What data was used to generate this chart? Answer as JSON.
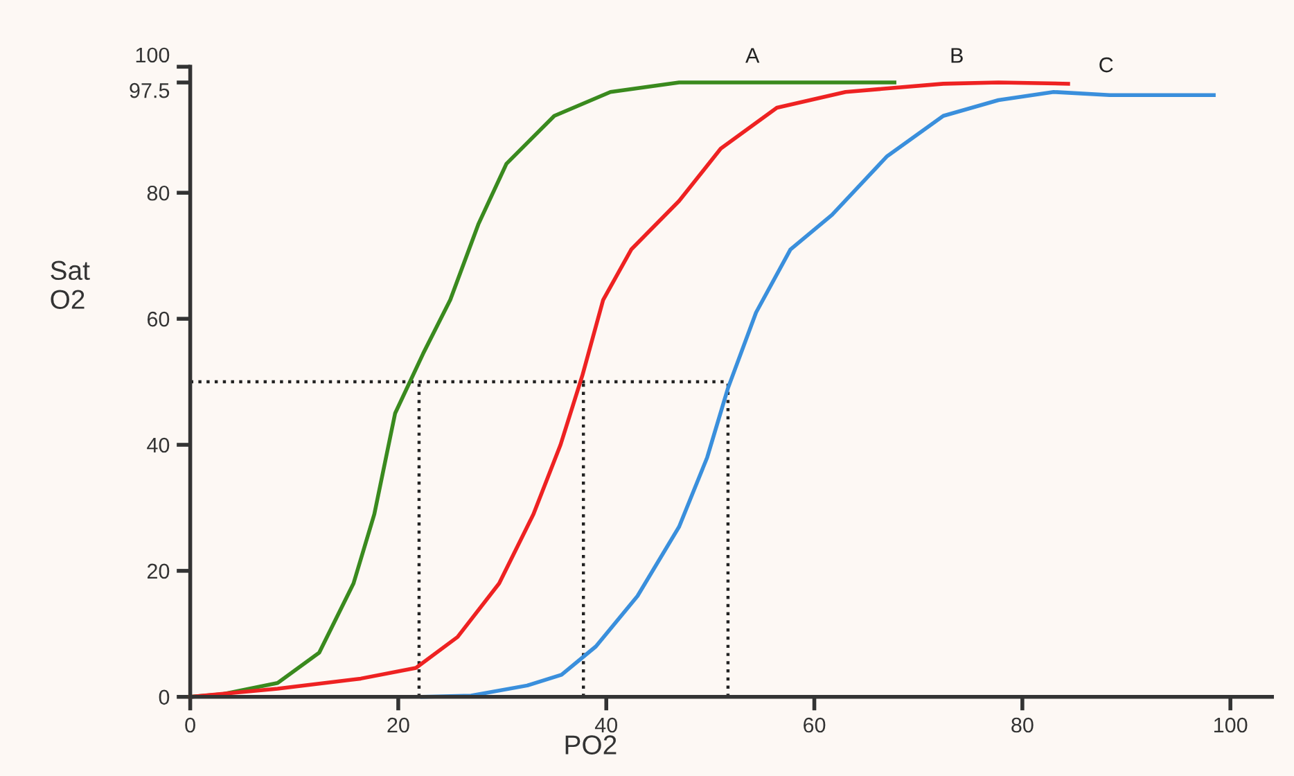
{
  "chart_data": {
    "type": "line",
    "xlabel": "PO2",
    "ylabel": "Sat\nO2",
    "xlim": [
      0,
      104
    ],
    "ylim": [
      0,
      100
    ],
    "xticks": [
      0,
      20,
      40,
      60,
      80,
      100
    ],
    "yticks": [
      0,
      20,
      40,
      60,
      80,
      97.5,
      100
    ],
    "grid": false,
    "legend": false,
    "marker": "none",
    "line_style": "solid",
    "series": [
      {
        "name": "A",
        "color": "#3a8a1e",
        "x": [
          0,
          3,
          8.4,
          12.4,
          15.7,
          17.7,
          19.7,
          22.4,
          25,
          27.7,
          30.4,
          35,
          40.4,
          47,
          53.7,
          67.7
        ],
        "values": [
          0,
          0.4,
          2.2,
          7,
          18,
          29,
          45,
          54.5,
          63,
          75,
          84.6,
          92.2,
          96,
          97.5,
          97.5,
          97.5
        ]
      },
      {
        "name": "B",
        "color": "#ee2222",
        "x": [
          0,
          8.4,
          16.4,
          21.7,
          25.7,
          29.7,
          33,
          35.6,
          37.7,
          39.7,
          42.4,
          47,
          51,
          56.4,
          63,
          72.4,
          77.7,
          84.4
        ],
        "values": [
          0,
          1.3,
          2.9,
          4.6,
          9.5,
          18,
          29,
          40,
          51,
          63,
          71,
          78.7,
          87,
          93.5,
          96,
          97.3,
          97.5,
          97.3
        ]
      },
      {
        "name": "C",
        "color": "#3a8fdc",
        "x": [
          22.3,
          27,
          32.4,
          35.7,
          39,
          43,
          47,
          49.7,
          51.7,
          54.4,
          57.7,
          61.7,
          67,
          72.4,
          77.7,
          83,
          88.4,
          98.4
        ],
        "values": [
          0,
          0.2,
          1.8,
          3.5,
          8,
          16,
          27,
          38,
          49,
          61,
          71,
          76.5,
          85.8,
          92.2,
          94.7,
          96,
          95.5,
          95.5
        ]
      }
    ],
    "ref_lines": [
      {
        "axis": "y",
        "value": 50,
        "color": "#222222",
        "line_style": "dotted"
      },
      {
        "axis": "x",
        "value": 22,
        "color": "#222222",
        "line_style": "dotted"
      },
      {
        "axis": "x",
        "value": 37.8,
        "color": "#222222",
        "line_style": "dotted"
      },
      {
        "axis": "x",
        "value": 51.7,
        "color": "#222222",
        "line_style": "dotted"
      }
    ]
  }
}
